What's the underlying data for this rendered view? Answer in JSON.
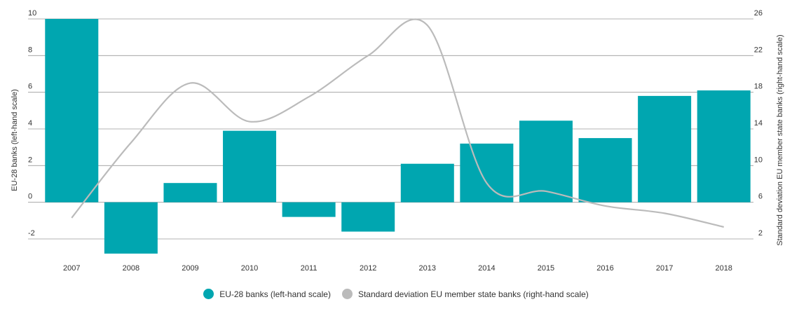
{
  "chart_data": {
    "type": "bar",
    "categories": [
      "2007",
      "2008",
      "2009",
      "2010",
      "2011",
      "2012",
      "2013",
      "2014",
      "2015",
      "2016",
      "2017",
      "2018"
    ],
    "series": [
      {
        "name": "EU-28 banks (left-hand scale)",
        "type": "bar",
        "axis": "left",
        "color": "#00a6b0",
        "values": [
          10.0,
          -2.8,
          1.05,
          3.9,
          -0.8,
          -1.6,
          2.1,
          3.2,
          4.45,
          3.5,
          5.8,
          6.1
        ]
      },
      {
        "name": "Standard deviation EU member state banks (right-hand scale)",
        "type": "line",
        "axis": "right",
        "color": "#bbbbbb",
        "values": [
          4.3,
          12.5,
          19.0,
          14.8,
          17.5,
          22.0,
          25.3,
          8.1,
          7.2,
          5.6,
          4.8,
          3.3
        ]
      }
    ],
    "ylabel_left": "EU-28 banks (left-hand scale)",
    "ylabel_right": "Standard deviation EU member state banks (right-hand scale)",
    "ylim_left": [
      -2,
      10
    ],
    "yticks_left": [
      "10",
      "8",
      "6",
      "4",
      "2",
      "0",
      "-2"
    ],
    "ylim_right": [
      2,
      26
    ],
    "yticks_right": [
      "26",
      "22",
      "18",
      "14",
      "10",
      "6",
      "2"
    ],
    "grid": "horizontal",
    "legend_position": "bottom-center"
  },
  "legend": {
    "items": [
      {
        "label": "EU-28 banks (left-hand scale)",
        "color": "#00a6b0"
      },
      {
        "label": "Standard deviation EU member state banks (right-hand scale)",
        "color": "#bbbbbb"
      }
    ]
  }
}
